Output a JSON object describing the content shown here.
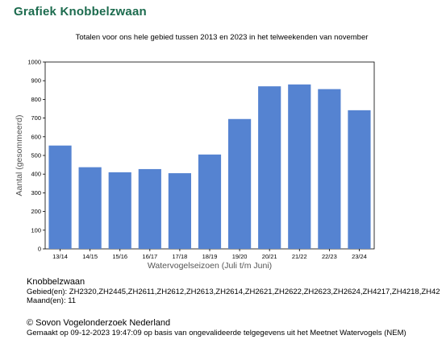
{
  "page": {
    "heading": "Grafiek Knobbelzwaan"
  },
  "chart_data": {
    "type": "bar",
    "title": "Totalen voor ons hele gebied tussen 2013 en 2023 in het telweekenden van november",
    "xlabel": "Watervogelseizoen (Juli t/m Juni)",
    "ylabel": "Aantal (gesommeerd)",
    "categories": [
      "13/14",
      "14/15",
      "15/16",
      "16/17",
      "17/18",
      "18/19",
      "19/20",
      "20/21",
      "21/22",
      "22/23",
      "23/24"
    ],
    "values": [
      553,
      437,
      410,
      427,
      405,
      505,
      695,
      870,
      880,
      855,
      742
    ],
    "ylim": [
      0,
      1000
    ],
    "yticks": [
      0,
      100,
      200,
      300,
      400,
      500,
      600,
      700,
      800,
      900,
      1000
    ],
    "grid": false,
    "bar_color": "#5583d1"
  },
  "info": {
    "species": "Knobbelzwaan",
    "areas": "Gebied(en): ZH2320,ZH2445,ZH2611,ZH2612,ZH2613,ZH2614,ZH2621,ZH2622,ZH2623,ZH2624,ZH4217,ZH4218,ZH42",
    "month": "Maand(en): 11",
    "copyright": "© Sovon Vogelonderzoek Nederland",
    "made": "Gemaakt op 09-12-2023 19:47:09 op basis van ongevalideerde telgegevens uit het Meetnet Watervogels (NEM)"
  }
}
